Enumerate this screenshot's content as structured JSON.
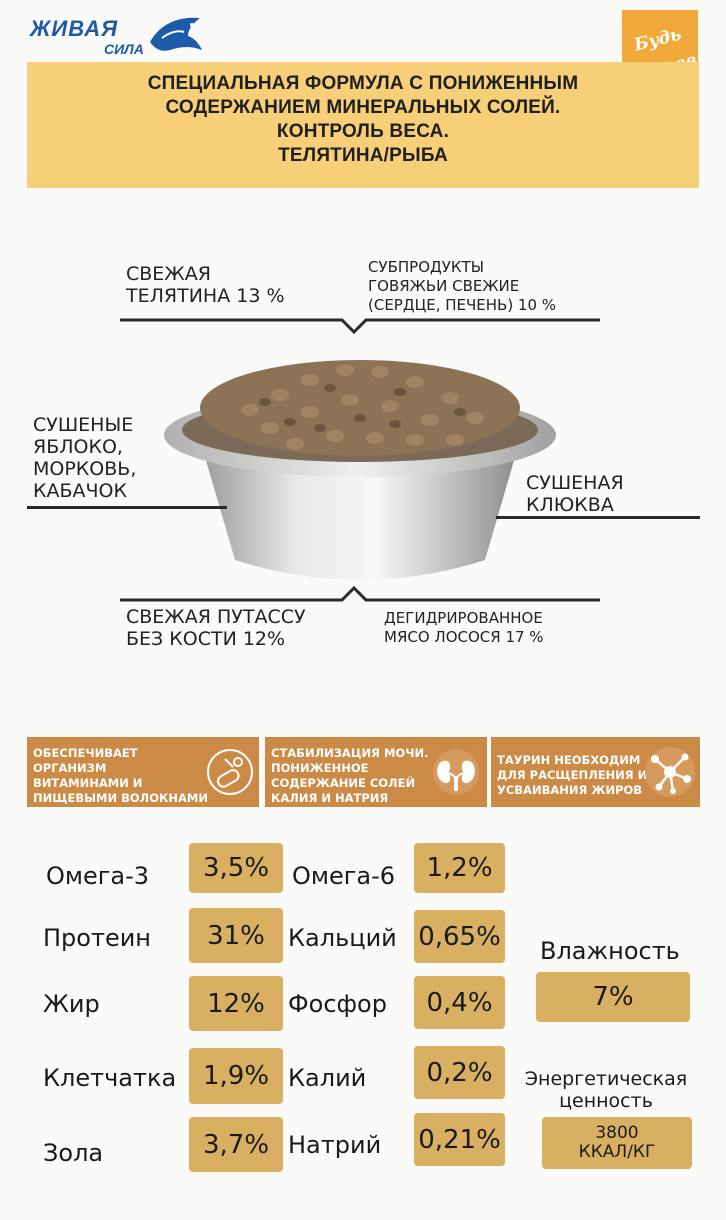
{
  "brand": {
    "logo_main": "ЖИВАЯ",
    "logo_sub": "СИЛА",
    "badge_line1": "Будь",
    "badge_line2": "Здоров"
  },
  "header": {
    "title_lines": [
      "СПЕЦИАЛЬНАЯ ФОРМУЛА С ПОНИЖЕННЫМ",
      "СОДЕРЖАНИЕМ МИНЕРАЛЬНЫХ СОЛЕЙ.",
      "КОНТРОЛЬ ВЕСА.",
      "ТЕЛЯТИНА/РЫБА"
    ]
  },
  "ingredients": {
    "veal": [
      "СВЕЖАЯ",
      "ТЕЛЯТИНА 13 %"
    ],
    "offal": [
      "СУБПРОДУКТЫ",
      "ГОВЯЖЬИ СВЕЖИЕ",
      "(СЕРДЦЕ, ПЕЧЕНЬ) 10 %"
    ],
    "dried_veg": [
      "СУШЕНЫЕ",
      "ЯБЛОКО,",
      "МОРКОВЬ,",
      "КАБАЧОК"
    ],
    "cranberry": [
      "СУШЕНАЯ",
      "КЛЮКВА"
    ],
    "pollock": [
      "СВЕЖАЯ ПУТАССУ",
      "БЕЗ КОСТИ 12%"
    ],
    "salmon": [
      "ДЕГИДРИРОВАННОЕ",
      "МЯСО ЛОСОСЯ 17 %"
    ]
  },
  "features": [
    {
      "lines": [
        "ОБЕСПЕЧИВАЕТ",
        "ОРГАНИЗМ",
        "ВИТАМИНАМИ И",
        "ПИЩЕВЫМИ ВОЛОКНАМИ"
      ],
      "icon": "vitamin-icon"
    },
    {
      "lines": [
        "СТАБИЛИЗАЦИЯ МОЧИ.",
        "ПОНИЖЕННОЕ",
        "СОДЕРЖАНИЕ СОЛЕЙ",
        "КАЛИЯ И НАТРИЯ"
      ],
      "icon": "kidneys-icon"
    },
    {
      "lines": [
        "ТАУРИН НЕОБХОДИМ",
        "ДЛЯ РАСЩЕПЛЕНИЯ И",
        "УСВАИВАНИЯ ЖИРОВ"
      ],
      "icon": "molecule-icon"
    }
  ],
  "nutrition": {
    "left": [
      {
        "label": "Омега-3",
        "value": "3,5%"
      },
      {
        "label": "Протеин",
        "value": "31%"
      },
      {
        "label": "Жир",
        "value": "12%"
      },
      {
        "label": "Клетчатка",
        "value": "1,9%"
      },
      {
        "label": "Зола",
        "value": "3,7%"
      }
    ],
    "middle": [
      {
        "label": "Омега-6",
        "value": "1,2%"
      },
      {
        "label": "Кальций",
        "value": "0,65%"
      },
      {
        "label": "Фосфор",
        "value": "0,4%"
      },
      {
        "label": "Калий",
        "value": "0,2%"
      },
      {
        "label": "Натрий",
        "value": "0,21%"
      }
    ],
    "moisture": {
      "label": "Влажность",
      "value": "7%"
    },
    "energy": {
      "label_lines": [
        "Энергетическая",
        "ценность"
      ],
      "value_lines": [
        "3800",
        "ККАЛ/КГ"
      ]
    }
  },
  "colors": {
    "header_band": "#f7cf79",
    "feature_bar": "#cc8a47",
    "value_box": "#d9b061",
    "badge": "#f2a93b",
    "logo": "#1e5aa8"
  }
}
